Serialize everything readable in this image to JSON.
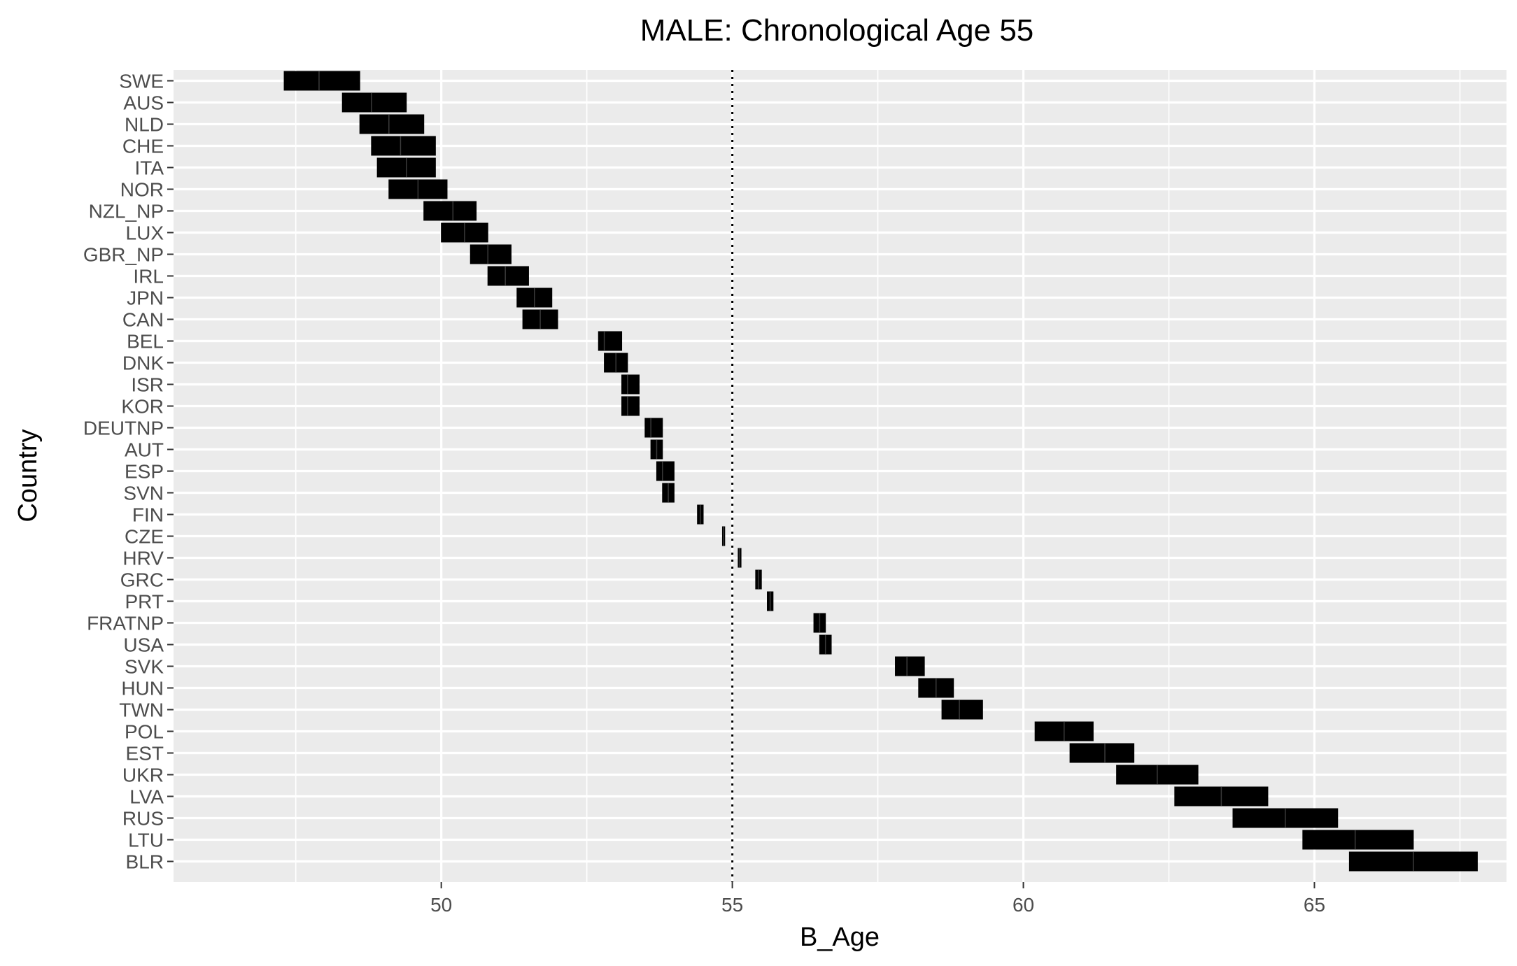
{
  "chart_data": {
    "type": "crossbar",
    "title": "MALE: Chronological Age 55",
    "xlabel": "B_Age",
    "ylabel": "Country",
    "xlim": [
      45.4,
      68.3
    ],
    "x_ticks": [
      50,
      55,
      60,
      65
    ],
    "reference_line": {
      "x": 55,
      "style": "dotted"
    },
    "grid": true,
    "colors": {
      "panel": "#ebebeb",
      "grid": "#ffffff",
      "bar": "#000000",
      "tick_text": "#4d4d4d"
    },
    "countries": [
      {
        "name": "SWE",
        "low": 47.3,
        "mid": 47.9,
        "high": 48.6
      },
      {
        "name": "AUS",
        "low": 48.3,
        "mid": 48.8,
        "high": 49.4
      },
      {
        "name": "NLD",
        "low": 48.6,
        "mid": 49.1,
        "high": 49.7
      },
      {
        "name": "CHE",
        "low": 48.8,
        "mid": 49.3,
        "high": 49.9
      },
      {
        "name": "ITA",
        "low": 48.9,
        "mid": 49.4,
        "high": 49.9
      },
      {
        "name": "NOR",
        "low": 49.1,
        "mid": 49.6,
        "high": 50.1
      },
      {
        "name": "NZL_NP",
        "low": 49.7,
        "mid": 50.2,
        "high": 50.6
      },
      {
        "name": "LUX",
        "low": 50.0,
        "mid": 50.4,
        "high": 50.8
      },
      {
        "name": "GBR_NP",
        "low": 50.5,
        "mid": 50.8,
        "high": 51.2
      },
      {
        "name": "IRL",
        "low": 50.8,
        "mid": 51.1,
        "high": 51.5
      },
      {
        "name": "JPN",
        "low": 51.3,
        "mid": 51.6,
        "high": 51.9
      },
      {
        "name": "CAN",
        "low": 51.4,
        "mid": 51.7,
        "high": 52.0
      },
      {
        "name": "BEL",
        "low": 52.7,
        "mid": 52.8,
        "high": 53.1
      },
      {
        "name": "DNK",
        "low": 52.8,
        "mid": 53.0,
        "high": 53.2
      },
      {
        "name": "ISR",
        "low": 53.1,
        "mid": 53.2,
        "high": 53.4
      },
      {
        "name": "KOR",
        "low": 53.1,
        "mid": 53.2,
        "high": 53.4
      },
      {
        "name": "DEUTNP",
        "low": 53.5,
        "mid": 53.6,
        "high": 53.8
      },
      {
        "name": "AUT",
        "low": 53.6,
        "mid": 53.7,
        "high": 53.8
      },
      {
        "name": "ESP",
        "low": 53.7,
        "mid": 53.8,
        "high": 54.0
      },
      {
        "name": "SVN",
        "low": 53.8,
        "mid": 53.9,
        "high": 54.0
      },
      {
        "name": "FIN",
        "low": 54.4,
        "mid": 54.45,
        "high": 54.5
      },
      {
        "name": "CZE",
        "low": 54.83,
        "mid": 54.85,
        "high": 54.87
      },
      {
        "name": "HRV",
        "low": 55.1,
        "mid": 55.12,
        "high": 55.15
      },
      {
        "name": "GRC",
        "low": 55.4,
        "mid": 55.45,
        "high": 55.5
      },
      {
        "name": "PRT",
        "low": 55.6,
        "mid": 55.65,
        "high": 55.7
      },
      {
        "name": "FRATNP",
        "low": 56.4,
        "mid": 56.5,
        "high": 56.6
      },
      {
        "name": "USA",
        "low": 56.5,
        "mid": 56.6,
        "high": 56.7
      },
      {
        "name": "SVK",
        "low": 57.8,
        "mid": 58.0,
        "high": 58.3
      },
      {
        "name": "HUN",
        "low": 58.2,
        "mid": 58.5,
        "high": 58.8
      },
      {
        "name": "TWN",
        "low": 58.6,
        "mid": 58.9,
        "high": 59.3
      },
      {
        "name": "POL",
        "low": 60.2,
        "mid": 60.7,
        "high": 61.2
      },
      {
        "name": "EST",
        "low": 60.8,
        "mid": 61.4,
        "high": 61.9
      },
      {
        "name": "UKR",
        "low": 61.6,
        "mid": 62.3,
        "high": 63.0
      },
      {
        "name": "LVA",
        "low": 62.6,
        "mid": 63.4,
        "high": 64.2
      },
      {
        "name": "RUS",
        "low": 63.6,
        "mid": 64.5,
        "high": 65.4
      },
      {
        "name": "LTU",
        "low": 64.8,
        "mid": 65.7,
        "high": 66.7
      },
      {
        "name": "BLR",
        "low": 65.6,
        "mid": 66.7,
        "high": 67.8
      }
    ]
  }
}
